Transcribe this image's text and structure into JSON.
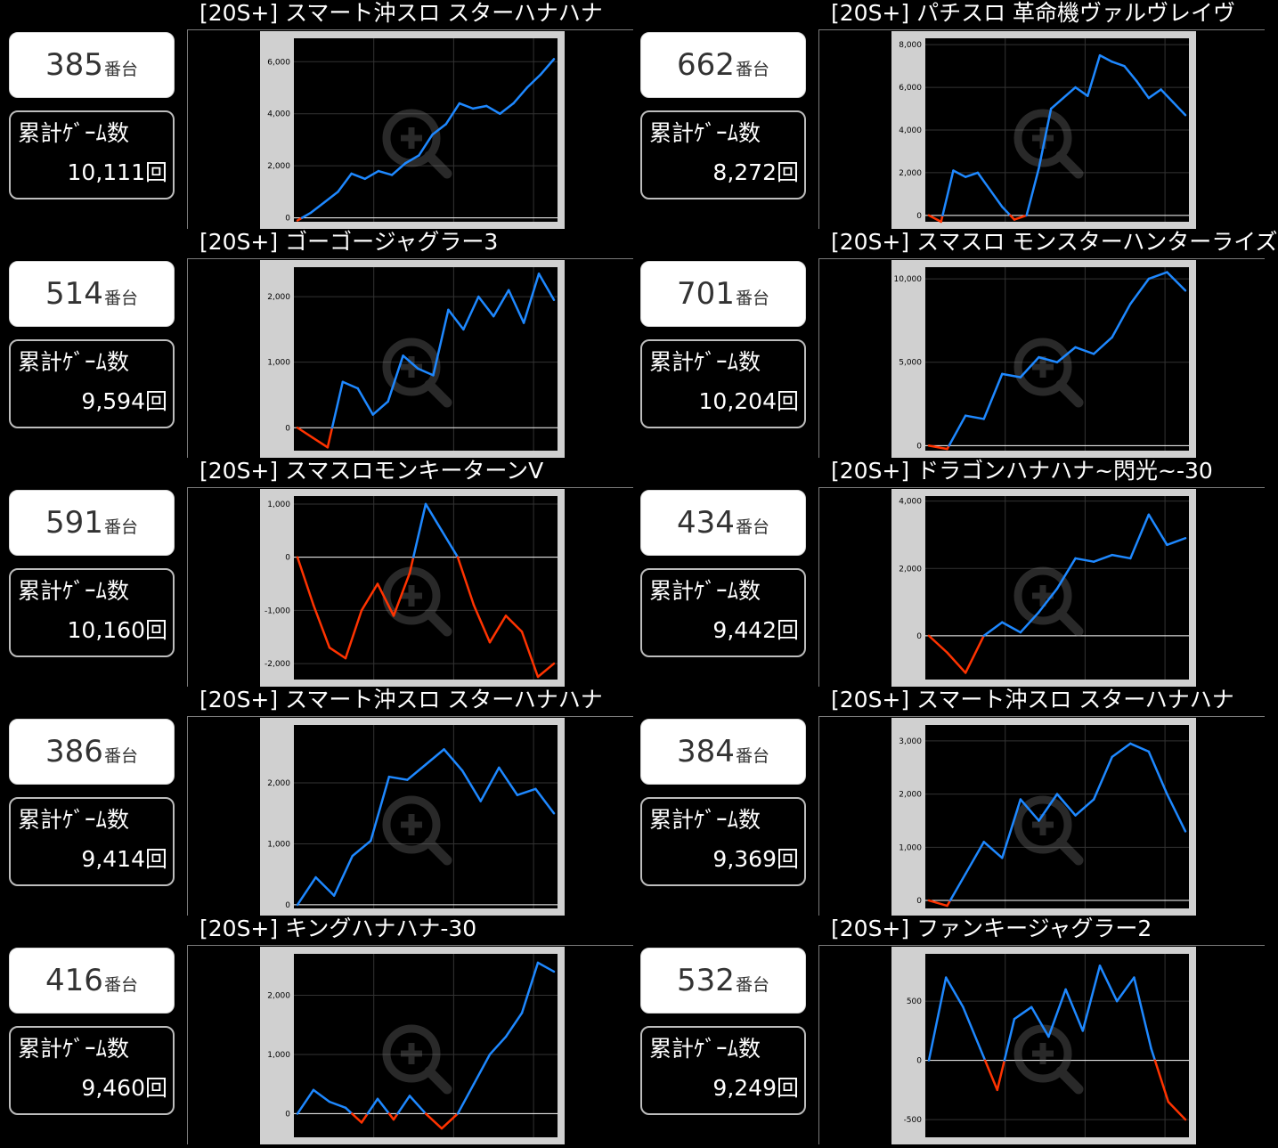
{
  "colors": {
    "plus": "#1e88ff",
    "minus": "#ff3300",
    "frame": "#d0d0d0",
    "plot_bg": "#000000",
    "zero": "#ffffff",
    "grid": "#333333"
  },
  "counter_suffix": "番台",
  "games_label": "累計ｹﾞｰﾑ数",
  "zoom_icon": "magnifier-plus-icon",
  "machines": [
    {
      "title": "[20S+] スマート沖スロ スターハナハナ",
      "number": "385",
      "games": "10,111回",
      "chart_data": {
        "type": "line",
        "yticks": [
          "0",
          "2,000",
          "4,000",
          "6,000"
        ],
        "ytick_values": [
          0,
          2000,
          4000,
          6000
        ],
        "ylim": [
          -150,
          6900
        ],
        "values": [
          -100,
          200,
          600,
          1000,
          1700,
          1500,
          1800,
          1650,
          2100,
          2400,
          3200,
          3600,
          4400,
          4200,
          4300,
          4000,
          4400,
          5000,
          5500,
          6100
        ]
      }
    },
    {
      "title": "[20S+] パチスロ 革命機ヴァルヴレイヴ",
      "number": "662",
      "games": "8,272回",
      "chart_data": {
        "type": "line",
        "yticks": [
          "0",
          "2,000",
          "4,000",
          "6,000",
          "8,000"
        ],
        "ytick_values": [
          0,
          2000,
          4000,
          6000,
          8000
        ],
        "ylim": [
          -300,
          8300
        ],
        "values": [
          0,
          -300,
          2100,
          1800,
          2000,
          1200,
          400,
          -200,
          0,
          2200,
          5000,
          5500,
          6000,
          5600,
          7500,
          7200,
          7000,
          6300,
          5500,
          5900,
          5300,
          4700
        ]
      }
    },
    {
      "title": "[20S+] ゴーゴージャグラー3",
      "number": "514",
      "games": "9,594回",
      "chart_data": {
        "type": "line",
        "yticks": [
          "0",
          "1,000",
          "2,000"
        ],
        "ytick_values": [
          0,
          1000,
          2000
        ],
        "ylim": [
          -350,
          2450
        ],
        "values": [
          0,
          -150,
          -300,
          700,
          600,
          200,
          400,
          1100,
          900,
          800,
          1800,
          1500,
          2000,
          1700,
          2100,
          1600,
          2350,
          1950
        ]
      }
    },
    {
      "title": "[20S+] スマスロ モンスターハンターライズ",
      "number": "701",
      "games": "10,204回",
      "chart_data": {
        "type": "line",
        "yticks": [
          "0",
          "5,000",
          "10,000"
        ],
        "ytick_values": [
          0,
          5000,
          10000
        ],
        "ylim": [
          -300,
          10700
        ],
        "values": [
          0,
          -200,
          1800,
          1600,
          4300,
          4100,
          5300,
          5000,
          5900,
          5500,
          6500,
          8500,
          10000,
          10400,
          9300
        ]
      }
    },
    {
      "title": "[20S+] スマスロモンキーターンV",
      "number": "591",
      "games": "10,160回",
      "chart_data": {
        "type": "line",
        "yticks": [
          "1,000",
          "0",
          "-1,000",
          "-2,000"
        ],
        "ytick_values": [
          1000,
          0,
          -1000,
          -2000
        ],
        "ylim": [
          -2300,
          1150
        ],
        "values": [
          0,
          -900,
          -1700,
          -1900,
          -1000,
          -500,
          -1100,
          -300,
          1000,
          500,
          0,
          -900,
          -1600,
          -1100,
          -1400,
          -2250,
          -2000
        ]
      }
    },
    {
      "title": "[20S+] ドラゴンハナハナ~閃光~-30",
      "number": "434",
      "games": "9,442回",
      "chart_data": {
        "type": "line",
        "yticks": [
          "0",
          "2,000",
          "4,000"
        ],
        "ytick_values": [
          0,
          2000,
          4000
        ],
        "ylim": [
          -1300,
          4150
        ],
        "values": [
          0,
          -500,
          -1100,
          0,
          400,
          100,
          700,
          1400,
          2300,
          2200,
          2400,
          2300,
          3600,
          2700,
          2900
        ]
      }
    },
    {
      "title": "[20S+] スマート沖スロ スターハナハナ",
      "number": "386",
      "games": "9,414回",
      "chart_data": {
        "type": "line",
        "yticks": [
          "0",
          "1,000",
          "2,000"
        ],
        "ytick_values": [
          0,
          1000,
          2000
        ],
        "ylim": [
          -60,
          2950
        ],
        "values": [
          0,
          450,
          150,
          800,
          1050,
          2100,
          2050,
          2300,
          2550,
          2200,
          1700,
          2250,
          1800,
          1900,
          1500
        ]
      }
    },
    {
      "title": "[20S+] スマート沖スロ スターハナハナ",
      "number": "384",
      "games": "9,369回",
      "chart_data": {
        "type": "line",
        "yticks": [
          "0",
          "1,000",
          "2,000",
          "3,000"
        ],
        "ytick_values": [
          0,
          1000,
          2000,
          3000
        ],
        "ylim": [
          -150,
          3300
        ],
        "values": [
          0,
          -100,
          500,
          1100,
          800,
          1900,
          1500,
          2000,
          1600,
          1900,
          2700,
          2950,
          2800,
          2000,
          1300
        ]
      }
    },
    {
      "title": "[20S+] キングハナハナ-30",
      "number": "416",
      "games": "9,460回",
      "chart_data": {
        "type": "line",
        "yticks": [
          "0",
          "1,000",
          "2,000"
        ],
        "ytick_values": [
          0,
          1000,
          2000
        ],
        "ylim": [
          -400,
          2700
        ],
        "values": [
          0,
          400,
          200,
          100,
          -150,
          250,
          -100,
          300,
          0,
          -250,
          0,
          500,
          1000,
          1300,
          1700,
          2550,
          2400
        ]
      }
    },
    {
      "title": "[20S+] ファンキージャグラー2",
      "number": "532",
      "games": "9,249回",
      "chart_data": {
        "type": "line",
        "yticks": [
          "500",
          "0",
          "-500"
        ],
        "ytick_values": [
          500,
          0,
          -500
        ],
        "ylim": [
          -650,
          900
        ],
        "values": [
          0,
          700,
          450,
          100,
          -250,
          350,
          450,
          200,
          600,
          250,
          800,
          500,
          700,
          100,
          -350,
          -500
        ]
      }
    }
  ]
}
